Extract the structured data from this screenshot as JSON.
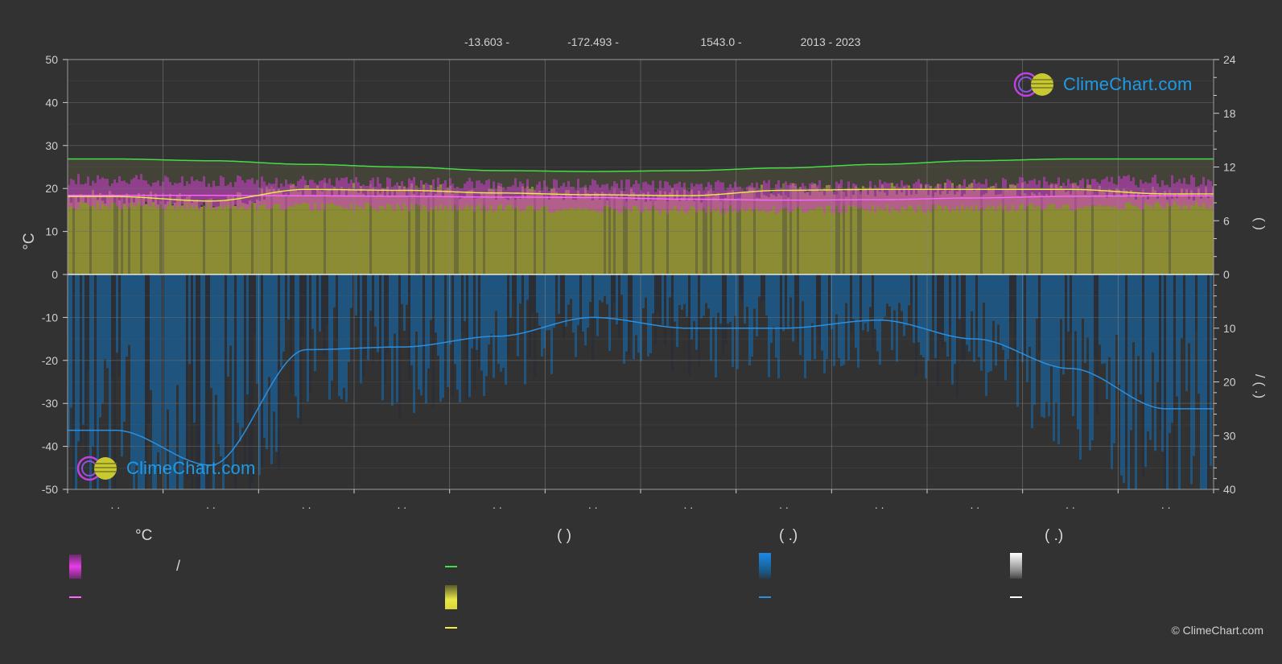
{
  "header": {
    "latitude": "-13.603 -",
    "longitude": "-172.493 -",
    "elevation": "1543.0 -",
    "years": "2013 - 2023"
  },
  "brand": {
    "name": "ClimeChart.com",
    "copyright": "© ClimeChart.com"
  },
  "axes": {
    "left_label": "°C",
    "right_upper_label": "(   )",
    "right_lower_label": "/   (   .)"
  },
  "legend": {
    "temperature_header": "°C",
    "sun_header": "(          )",
    "rain_header": "(   .)",
    "snow_header": "(   .)",
    "slash_text": "/"
  },
  "colors": {
    "background": "#323232",
    "day_temp_band": "#d23cd2",
    "avg_temp": "#ff66ff",
    "daylight": "#44dd44",
    "sunshine_band": "#a0a02a",
    "sunshine_line": "#eeee44",
    "rain_band": "#1c5a8c",
    "rain_line": "#2a8fe0",
    "snow_line": "#ffffff",
    "brand": "#1e9be8"
  },
  "chart_data": {
    "type": "line",
    "months": 12,
    "x_tick_labels": [
      ". .",
      ". .",
      ". .",
      ". .",
      ". .",
      ". .",
      ". .",
      ". .",
      ". .",
      ". .",
      ". .",
      ". ."
    ],
    "left_axis": {
      "unit": "°C",
      "ylim": [
        -50,
        50
      ],
      "ticks": [
        50,
        40,
        30,
        20,
        10,
        0,
        -10,
        -20,
        -30,
        -40,
        -50
      ]
    },
    "right_axis_upper": {
      "ylim": [
        0,
        24
      ],
      "ticks": [
        24,
        18,
        12,
        6,
        0
      ]
    },
    "right_axis_lower": {
      "ylim": [
        0,
        40
      ],
      "ticks": [
        10,
        20,
        30,
        40
      ],
      "inverted": true
    },
    "series": [
      {
        "key": "daylight_hours",
        "axis": "right_upper",
        "values": [
          12.9,
          12.7,
          12.3,
          12.0,
          11.6,
          11.5,
          11.6,
          11.9,
          12.3,
          12.7,
          12.9,
          12.9
        ]
      },
      {
        "key": "sunshine_hours",
        "axis": "right_upper",
        "values": [
          8.7,
          8.2,
          9.5,
          9.4,
          9.1,
          8.9,
          8.8,
          9.4,
          9.5,
          9.5,
          9.5,
          9.0
        ]
      },
      {
        "key": "avg_temp",
        "axis": "left",
        "values": [
          18.4,
          18.4,
          18.3,
          18.2,
          18.0,
          17.9,
          17.5,
          17.3,
          17.4,
          17.8,
          18.2,
          18.3
        ]
      },
      {
        "key": "day_temp_max",
        "axis": "left",
        "values": [
          22.0,
          21.8,
          21.5,
          21.2,
          21.0,
          20.8,
          20.5,
          20.5,
          20.8,
          21.0,
          21.5,
          21.8
        ]
      },
      {
        "key": "day_temp_min",
        "axis": "left",
        "values": [
          16.0,
          15.8,
          15.8,
          15.6,
          15.5,
          15.3,
          15.0,
          15.0,
          15.2,
          15.4,
          15.8,
          16.0
        ]
      },
      {
        "key": "precipitation_mm",
        "axis": "right_lower",
        "inverted": true,
        "values": [
          29.0,
          35.5,
          14.0,
          13.5,
          11.5,
          8.0,
          10.0,
          10.0,
          8.5,
          12.0,
          17.5,
          25.0
        ]
      }
    ]
  }
}
